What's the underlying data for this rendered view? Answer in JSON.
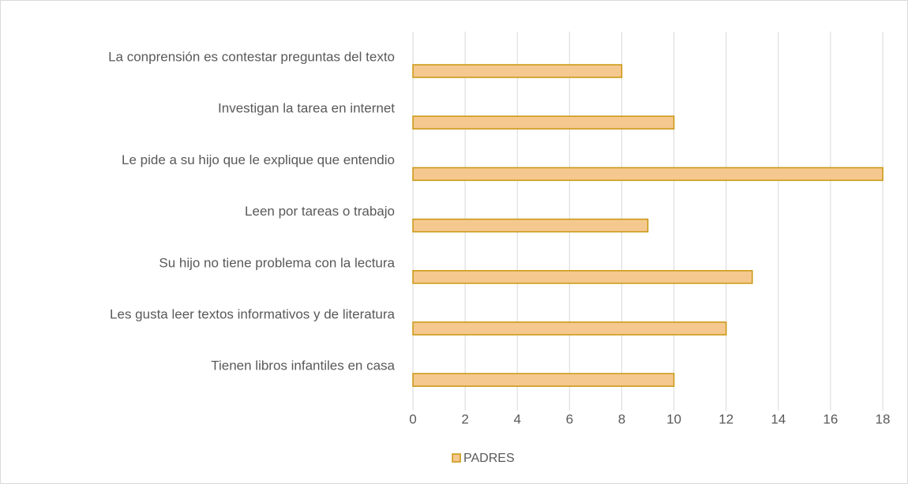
{
  "chart_data": {
    "type": "bar",
    "orientation": "horizontal",
    "categories": [
      "La conprensión es contestar preguntas del texto",
      "Investigan la tarea en internet",
      "Le pide a su hijo que le explique que entendio",
      "Leen por tareas o trabajo",
      "Su hijo no tiene problema con la lectura",
      "Les gusta leer textos informativos y de literatura",
      "Tienen libros infantiles en casa"
    ],
    "series": [
      {
        "name": "PADRES",
        "color": "#f5c88f",
        "edge_color": "#c9960f",
        "values": [
          8,
          10,
          18,
          9,
          13,
          12,
          10
        ]
      }
    ],
    "xlim": [
      0,
      18
    ],
    "xticks": [
      0,
      2,
      4,
      6,
      8,
      10,
      12,
      14,
      16,
      18
    ],
    "grid": true,
    "legend": "bottom"
  }
}
